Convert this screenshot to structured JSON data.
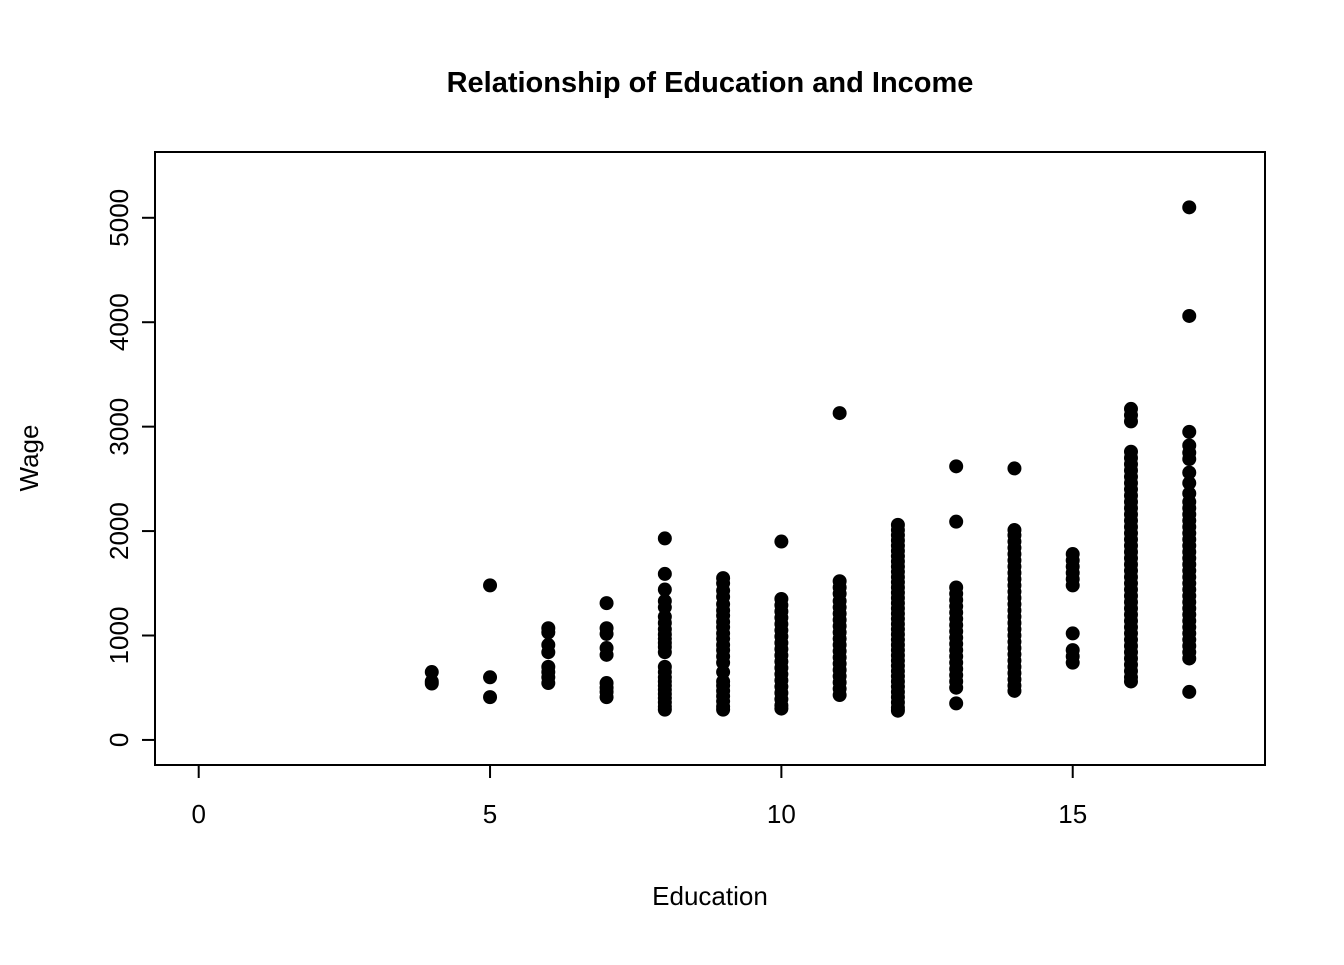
{
  "chart_data": {
    "type": "scatter",
    "title": "Relationship of Education and Income",
    "xlabel": "Education",
    "ylabel": "Wage",
    "x_ticks": [
      0,
      5,
      10,
      15
    ],
    "y_ticks": [
      0,
      1000,
      2000,
      3000,
      4000,
      5000
    ],
    "xlim": [
      -0.75,
      18.3
    ],
    "ylim": [
      -240,
      5630
    ],
    "grid": false,
    "legend": "none",
    "marker": {
      "shape": "circle",
      "color": "#000000",
      "radius": 7
    },
    "columns": [
      {
        "x": 4,
        "wages": [
          650,
          560,
          540
        ]
      },
      {
        "x": 5,
        "wages": [
          1480,
          600,
          410
        ]
      },
      {
        "x": 6,
        "wages": [
          1070,
          1030,
          910,
          840,
          700,
          650,
          600,
          545
        ]
      },
      {
        "x": 7,
        "wages": [
          1310,
          1070,
          1015,
          880,
          815,
          545,
          500,
          460,
          410
        ]
      },
      {
        "x": 8,
        "wages": [
          1930,
          1590,
          1440,
          1330,
          1270,
          1180,
          1120,
          1060,
          1010,
          970,
          930,
          890,
          840,
          700,
          650,
          600,
          560,
          520,
          480,
          440,
          400,
          360,
          320,
          290
        ]
      },
      {
        "x": 9,
        "wages": [
          1550,
          1500,
          1430,
          1370,
          1300,
          1240,
          1190,
          1130,
          1080,
          1020,
          970,
          910,
          860,
          800,
          740,
          650,
          560,
          520,
          470,
          420,
          370,
          320,
          290
        ]
      },
      {
        "x": 10,
        "wages": [
          1900,
          1350,
          1290,
          1230,
          1170,
          1110,
          1050,
          990,
          930,
          870,
          810,
          750,
          690,
          630,
          570,
          510,
          450,
          390,
          330,
          300
        ]
      },
      {
        "x": 11,
        "wages": [
          3130,
          1520,
          1460,
          1400,
          1330,
          1270,
          1210,
          1150,
          1090,
          1030,
          970,
          910,
          850,
          790,
          730,
          670,
          610,
          550,
          490,
          430
        ]
      },
      {
        "x": 12,
        "wages": [
          2060,
          2010,
          1960,
          1910,
          1860,
          1810,
          1760,
          1710,
          1660,
          1610,
          1560,
          1510,
          1460,
          1410,
          1360,
          1310,
          1260,
          1210,
          1160,
          1110,
          1060,
          1010,
          960,
          910,
          860,
          810,
          760,
          710,
          660,
          610,
          560,
          510,
          460,
          410,
          360,
          310,
          280
        ]
      },
      {
        "x": 13,
        "wages": [
          2620,
          2090,
          1460,
          1400,
          1340,
          1280,
          1220,
          1160,
          1100,
          1040,
          980,
          920,
          860,
          800,
          740,
          680,
          620,
          560,
          500,
          350
        ]
      },
      {
        "x": 14,
        "wages": [
          2600,
          2010,
          1960,
          1900,
          1840,
          1780,
          1720,
          1660,
          1600,
          1540,
          1480,
          1420,
          1360,
          1300,
          1240,
          1180,
          1120,
          1060,
          1000,
          940,
          880,
          820,
          760,
          700,
          640,
          580,
          520,
          470
        ]
      },
      {
        "x": 15,
        "wages": [
          1780,
          1720,
          1660,
          1600,
          1540,
          1480,
          1020,
          860,
          800,
          740
        ]
      },
      {
        "x": 16,
        "wages": [
          3170,
          3110,
          3050,
          2760,
          2700,
          2640,
          2580,
          2520,
          2460,
          2400,
          2340,
          2280,
          2220,
          2160,
          2100,
          2040,
          1980,
          1920,
          1860,
          1800,
          1740,
          1680,
          1620,
          1560,
          1500,
          1440,
          1380,
          1320,
          1260,
          1200,
          1140,
          1080,
          1020,
          960,
          900,
          840,
          780,
          720,
          660,
          600,
          560
        ]
      },
      {
        "x": 17,
        "wages": [
          5100,
          4060,
          2950,
          2820,
          2750,
          2690,
          2560,
          2460,
          2360,
          2280,
          2220,
          2160,
          2100,
          2040,
          1980,
          1920,
          1860,
          1800,
          1740,
          1680,
          1620,
          1560,
          1500,
          1440,
          1380,
          1320,
          1260,
          1200,
          1140,
          1080,
          1020,
          960,
          900,
          840,
          780,
          460
        ]
      }
    ]
  }
}
